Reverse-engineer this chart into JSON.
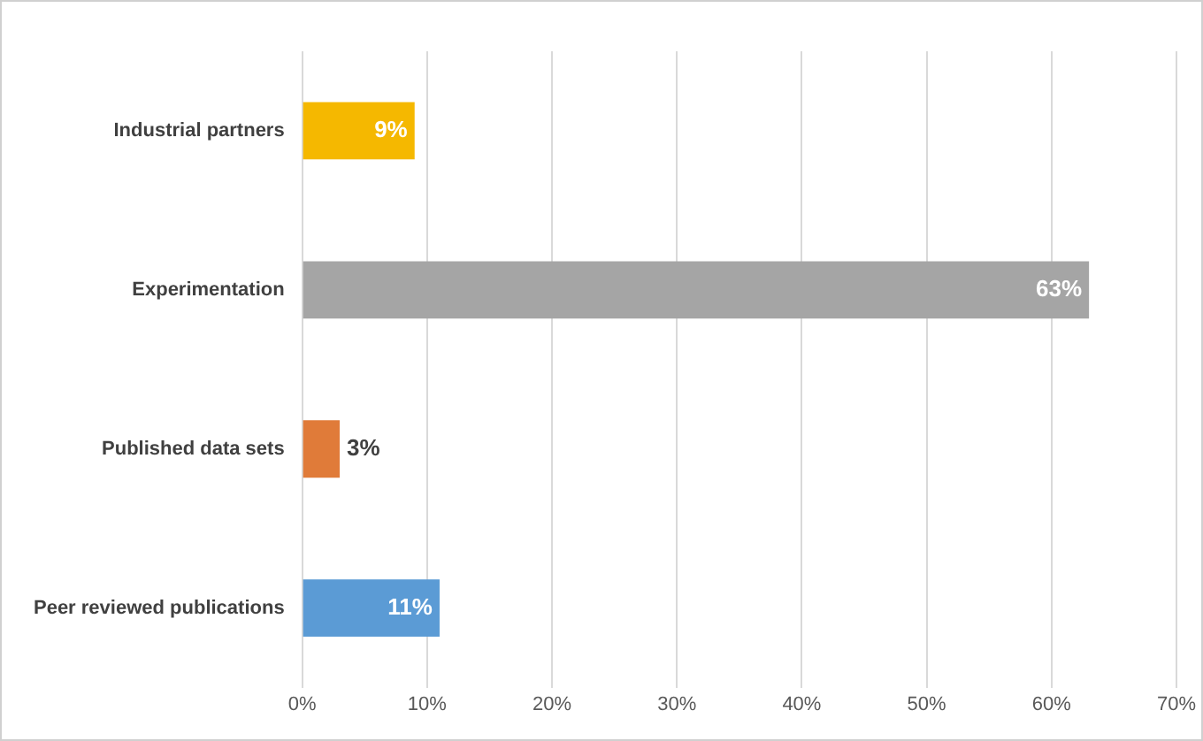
{
  "chart_data": {
    "type": "bar",
    "orientation": "horizontal",
    "categories": [
      "Industrial partners",
      "Experimentation",
      "Published data sets",
      "Peer reviewed publications"
    ],
    "values": [
      9,
      63,
      3,
      11
    ],
    "colors": [
      "#f5b800",
      "#a5a5a5",
      "#e07b39",
      "#5b9bd5"
    ],
    "value_labels": [
      "9%",
      "63%",
      "3%",
      "11%"
    ],
    "xlim": [
      0,
      70
    ],
    "xticks": [
      {
        "value": 0,
        "label": "0%"
      },
      {
        "value": 10,
        "label": "10%"
      },
      {
        "value": 20,
        "label": "20%"
      },
      {
        "value": 30,
        "label": "30%"
      },
      {
        "value": 40,
        "label": "40%"
      },
      {
        "value": 50,
        "label": "50%"
      },
      {
        "value": 60,
        "label": "60%"
      },
      {
        "value": 70,
        "label": "70%"
      }
    ],
    "grid": "x",
    "legend": false
  }
}
